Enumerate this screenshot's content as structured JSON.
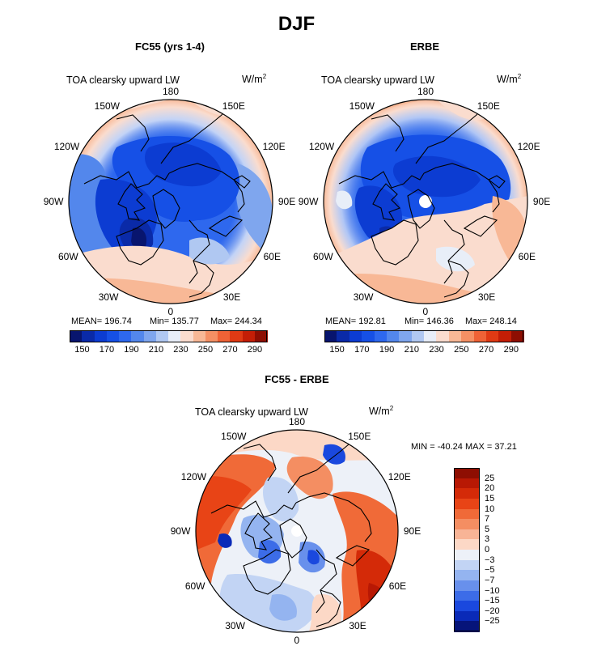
{
  "figure": {
    "title": "DJF",
    "units_base": "W/m",
    "units_exp": "2",
    "lon_labels": [
      "180",
      "150E",
      "120E",
      "90E",
      "60E",
      "30E",
      "0",
      "30W",
      "60W",
      "90W",
      "120W",
      "150W"
    ]
  },
  "chart_data": [
    {
      "type": "heatmap",
      "title": "FC55 (yrs 1-4)",
      "subtitle": "TOA clearsky upward LW",
      "projection": "north polar stereographic",
      "stats": {
        "mean_label": "MEAN= 196.74",
        "min_label": "Min= 135.77",
        "max_label": "Max= 244.34",
        "mean": 196.74,
        "min": 135.77,
        "max": 244.34
      },
      "colorbar": {
        "levels": [
          150,
          160,
          170,
          180,
          190,
          200,
          210,
          220,
          230,
          240,
          250,
          260,
          270,
          280,
          290
        ],
        "tick_labels": [
          "150",
          "170",
          "190",
          "210",
          "230",
          "250",
          "270",
          "290"
        ],
        "colors": [
          "#08156e",
          "#0a2aa8",
          "#0c3cd2",
          "#1650e6",
          "#2e68ee",
          "#5387ec",
          "#7fa6ee",
          "#b0c8f2",
          "#e8eef8",
          "#fadcce",
          "#f8b896",
          "#f59064",
          "#ef6236",
          "#e03a14",
          "#c41e06",
          "#8e0e02"
        ]
      }
    },
    {
      "type": "heatmap",
      "title": "ERBE",
      "subtitle": "TOA clearsky upward LW",
      "projection": "north polar stereographic",
      "stats": {
        "mean_label": "MEAN= 192.81",
        "min_label": "Min= 146.36",
        "max_label": "Max= 248.14",
        "mean": 192.81,
        "min": 146.36,
        "max": 248.14
      },
      "colorbar": {
        "levels": [
          150,
          160,
          170,
          180,
          190,
          200,
          210,
          220,
          230,
          240,
          250,
          260,
          270,
          280,
          290
        ],
        "tick_labels": [
          "150",
          "170",
          "190",
          "210",
          "230",
          "250",
          "270",
          "290"
        ],
        "colors": [
          "#08156e",
          "#0a2aa8",
          "#0c3cd2",
          "#1650e6",
          "#2e68ee",
          "#5387ec",
          "#7fa6ee",
          "#b0c8f2",
          "#e8eef8",
          "#fadcce",
          "#f8b896",
          "#f59064",
          "#ef6236",
          "#e03a14",
          "#c41e06",
          "#8e0e02"
        ]
      }
    },
    {
      "type": "heatmap",
      "title": "FC55 - ERBE",
      "subtitle": "TOA clearsky upward LW",
      "projection": "north polar stereographic",
      "stats": {
        "label": "MIN = -40.24 MAX =  37.21",
        "min": -40.24,
        "max": 37.21
      },
      "colorbar": {
        "levels": [
          -25,
          -20,
          -15,
          -10,
          -7,
          -5,
          -3,
          0,
          3,
          5,
          7,
          10,
          15,
          20,
          25
        ],
        "tick_labels": [
          "25",
          "20",
          "15",
          "10",
          "7",
          "5",
          "3",
          "0",
          "−3",
          "−5",
          "−7",
          "−10",
          "−15",
          "−20",
          "−25"
        ],
        "colors": [
          "#8e0e02",
          "#b81804",
          "#d42a08",
          "#e84416",
          "#f06a38",
          "#f48e62",
          "#f8b496",
          "#fcd8c6",
          "#edf1f8",
          "#c2d4f4",
          "#94b4f0",
          "#6890ec",
          "#3c6ce8",
          "#1a48de",
          "#0a2ab8",
          "#06147a"
        ]
      }
    }
  ]
}
